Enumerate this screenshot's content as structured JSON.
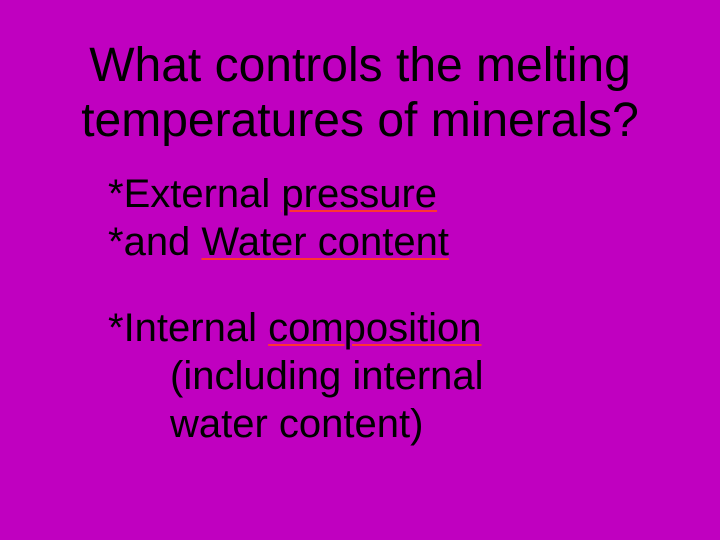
{
  "slide": {
    "background_color": "#c000c0",
    "text_color": "#000000",
    "font_family": "Comic Sans MS",
    "title": {
      "line1": "What controls the melting",
      "line2": "temperatures of minerals?",
      "fontsize": 48
    },
    "body": {
      "fontsize": 40,
      "underline_color": "#ff3333",
      "group1": {
        "line1_prefix": "*External ",
        "line1_underlined": "pressure",
        "line2_prefix": "*and ",
        "line2_underlined": "Water content"
      },
      "group2": {
        "line1_prefix": "*Internal ",
        "line1_underlined": "composition",
        "line2": "(including internal",
        "line3": "water content)"
      }
    }
  }
}
